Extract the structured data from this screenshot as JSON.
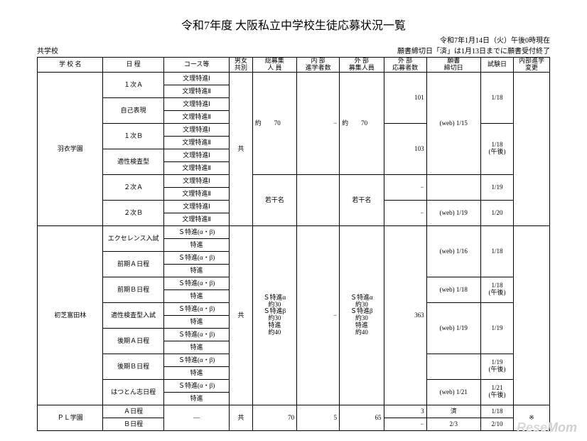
{
  "title": "令和7年度 大阪私立中学校生徒応募状況一覧",
  "asof": "令和7年1月14日（火）午後0時現在",
  "category": "共学校",
  "deadline_note": "願書締切日「済」は1月13日までに願書受付終了",
  "headers": {
    "school": "学 校 名",
    "sched": "日 程",
    "course": "コース等",
    "gender": "男女\n共別",
    "total": "総募集\n人 員",
    "intnum": "内 部\n進学者数",
    "ext_rec": "外 部\n募集人員",
    "ext_app": "外 部\n応募者数",
    "deadline": "願書\n締切日",
    "exam": "試験日",
    "chg": "内部進学\n変更"
  },
  "schools": {
    "hagoromo": {
      "name": "羽衣学園",
      "gender": "共",
      "s1a": "１次Ａ",
      "s_jiko": "自己表現",
      "s1b": "１次Ｂ",
      "s_teki": "適性検査型",
      "s2a": "２次Ａ",
      "s2b": "２次Ｂ",
      "c_bunri1": "文理特進Ⅰ",
      "c_bunri2": "文理特進Ⅱ",
      "total": "約　　70",
      "extrec": "約　　70",
      "dash": "−",
      "app101": "101",
      "app103": "103",
      "d15": "(web) 1/15",
      "d19": "(web) 1/19",
      "e118": "1/18",
      "e118pm": "1/18\n(午後)",
      "e119": "1/19",
      "e120": "1/20",
      "wakkan": "若干名"
    },
    "hatsushiba": {
      "name": "初芝富田林",
      "gender": "共",
      "s_ex": "エクセレンス入試",
      "s_zenA": "前期Ａ日程",
      "s_zenB": "前期Ｂ日程",
      "s_teki": "適性検査型入試",
      "s_kouA": "後期Ａ日程",
      "s_kouB": "後期Ｂ日程",
      "s_hatsu": "はつとん志日程",
      "c_sab": "Ｓ特進(α・β)",
      "c_toku": "特進",
      "total": "Ｓ特進α\n約30\nＳ特進β\n約30\n特進\n約40",
      "extrec": "Ｓ特進α\n約30\nＳ特進β\n約30\n特進\n約40",
      "dash": "−",
      "app363": "363",
      "d16": "(web) 1/16",
      "d18": "(web) 1/18",
      "d19": "(web) 1/19",
      "d21": "(web) 1/21",
      "e118": "1/18",
      "e118pm": "1/18\n(午後)",
      "e119": "1/19",
      "e119pm": "1/19\n(午後)",
      "e121pm": "1/21\n(午後)"
    },
    "pl": {
      "name": "ＰＬ学園",
      "gender": "共",
      "sA": "Ａ日程",
      "sB": "Ｂ日程",
      "course_dash": "—",
      "total": "70",
      "intnum": "5",
      "extrec": "65",
      "appA": "3",
      "appB": "−",
      "dA": "済",
      "dB": "2/3",
      "eA": "1/18",
      "eB": "2/10",
      "chg": "※"
    }
  },
  "watermark": {
    "a": "Rese",
    "b": "Mom"
  }
}
